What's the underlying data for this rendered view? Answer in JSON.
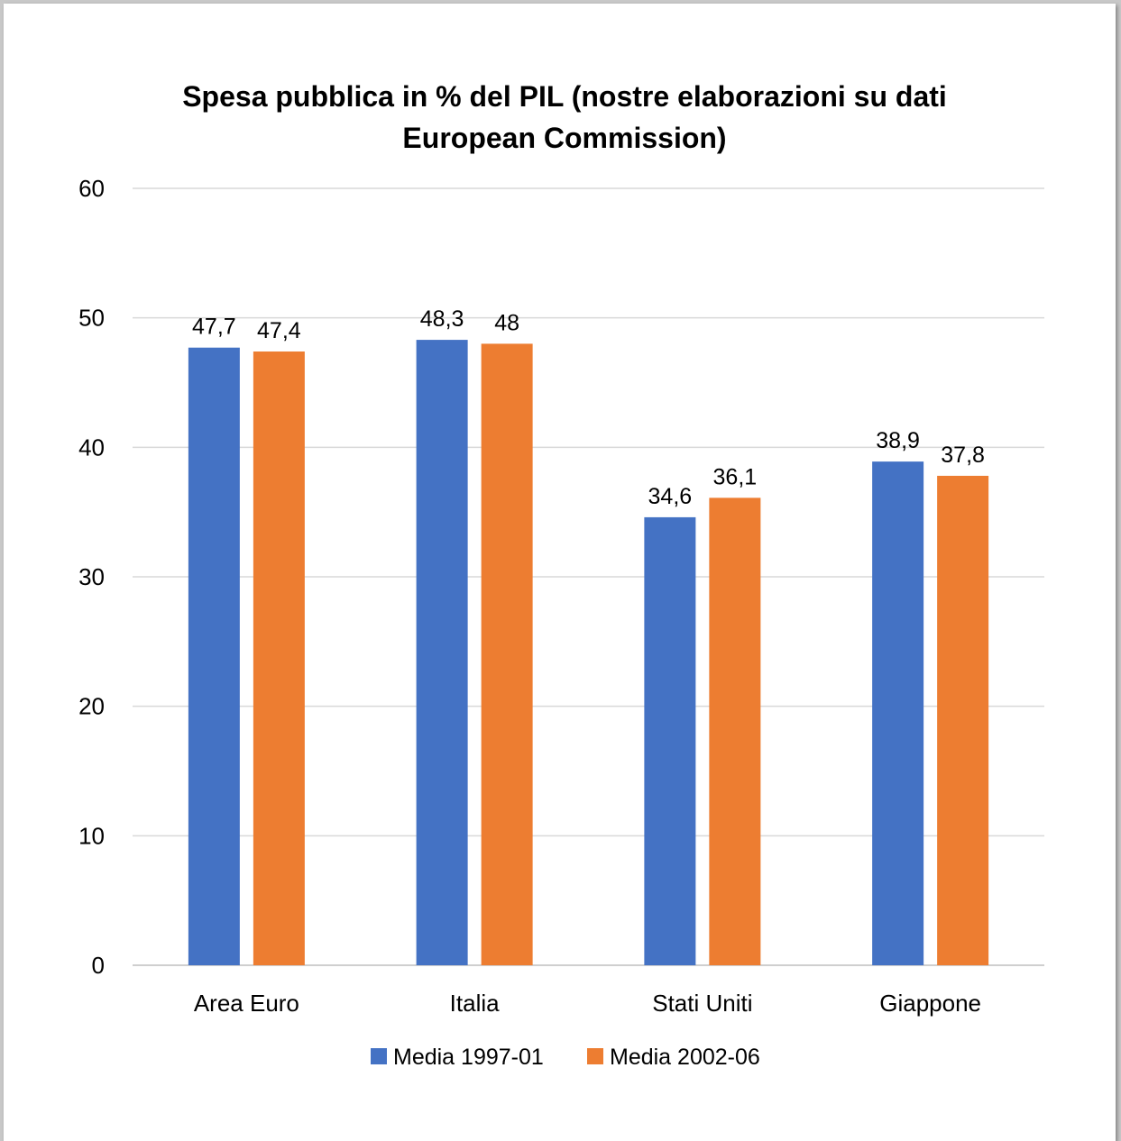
{
  "chart_data": {
    "type": "bar",
    "title_lines": [
      "Spesa pubblica in % del PIL (nostre elaborazioni su dati",
      "European Commission)"
    ],
    "categories": [
      "Area Euro",
      "Italia",
      "Stati Uniti",
      "Giappone"
    ],
    "series": [
      {
        "name": "Media 1997-01",
        "color": "#4472C4",
        "values": [
          47.7,
          48.3,
          34.6,
          38.9
        ],
        "labels": [
          "47,7",
          "48,3",
          "34,6",
          "38,9"
        ]
      },
      {
        "name": "Media 2002-06",
        "color": "#ED7D31",
        "values": [
          47.4,
          48.0,
          36.1,
          37.8
        ],
        "labels": [
          "47,4",
          "48",
          "36,1",
          "37,8"
        ]
      }
    ],
    "ylim": [
      0,
      60
    ],
    "yticks": [
      0,
      10,
      20,
      30,
      40,
      50,
      60
    ],
    "grid": true,
    "legend_position": "bottom"
  }
}
